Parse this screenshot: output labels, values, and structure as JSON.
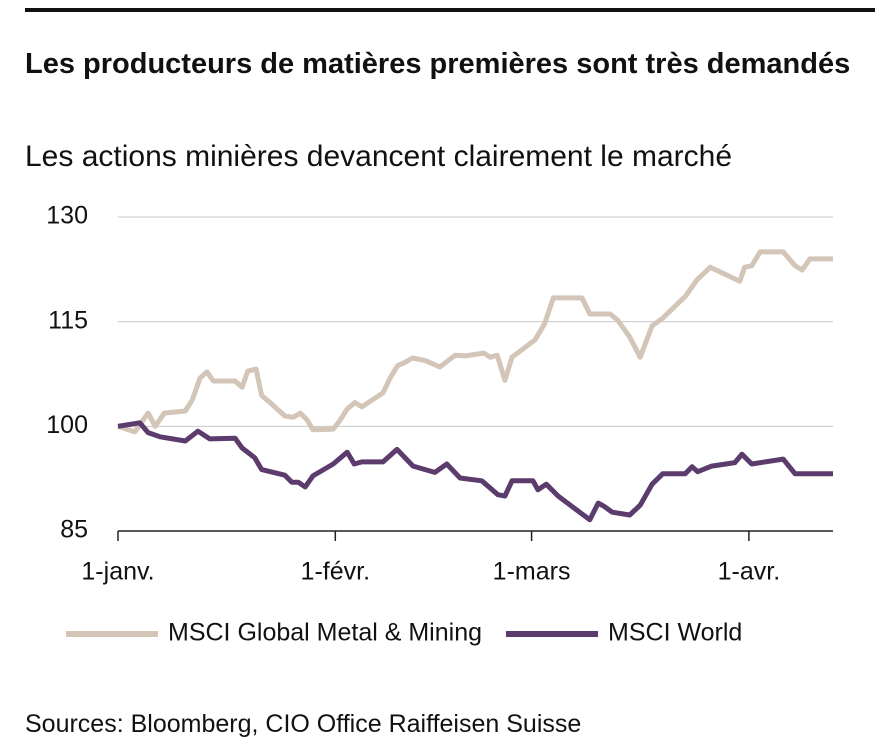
{
  "chart_data": {
    "type": "line",
    "title": "Les producteurs de matières premières sont très demandés",
    "subtitle": "Les actions minières devancent clairement le marché",
    "source": "Sources: Bloomberg, CIO Office Raiffeisen Suisse",
    "xlim": [
      0,
      102
    ],
    "xticks": [
      {
        "value": 0,
        "label": "1-janv."
      },
      {
        "value": 31,
        "label": "1-févr."
      },
      {
        "value": 59,
        "label": "1-mars"
      },
      {
        "value": 90,
        "label": "1-avr."
      }
    ],
    "ylim": [
      85,
      130
    ],
    "yticks": [
      85,
      100,
      115,
      130
    ],
    "grid": true,
    "legend": "bottom",
    "series": [
      {
        "name": "MSCI Global Metal & Mining",
        "color": "#d3c5b7",
        "x": [
          0,
          2.4,
          4.3,
          5.3,
          6.6,
          9.6,
          10.6,
          11.7,
          12.7,
          13.6,
          16.7,
          17.7,
          18.5,
          19.7,
          20.5,
          21.7,
          23.8,
          25.0,
          26.0,
          27.0,
          27.8,
          30.7,
          31.7,
          32.7,
          33.8,
          34.8,
          37.8,
          38.8,
          39.9,
          41.0,
          42.0,
          43.9,
          45.9,
          48.1,
          49.5,
          52.2,
          53.1,
          54.1,
          55.2,
          56.2,
          59.5,
          60.9,
          62.1,
          66.2,
          67.3,
          70.2,
          71.3,
          73.0,
          74.5,
          76.2,
          77.7,
          81.0,
          82.6,
          84.5,
          88.7,
          89.4,
          90.4,
          91.6,
          94.9,
          96.6,
          97.6,
          98.7,
          102
        ],
        "values": [
          100,
          99.2,
          101.9,
          100,
          101.9,
          102.2,
          103.8,
          106.9,
          107.8,
          106.5,
          106.5,
          105.6,
          107.9,
          108.2,
          104.4,
          103.4,
          101.5,
          101.3,
          101.9,
          100.9,
          99.5,
          99.6,
          100.9,
          102.5,
          103.4,
          102.8,
          104.8,
          106.9,
          108.7,
          109.2,
          109.8,
          109.4,
          108.5,
          110.2,
          110.1,
          110.5,
          109.9,
          110.2,
          106.6,
          109.9,
          112.4,
          114.8,
          118.4,
          118.4,
          116.1,
          116.1,
          115.2,
          112.8,
          109.9,
          114.4,
          115.5,
          118.7,
          121.0,
          122.8,
          120.8,
          122.8,
          123.0,
          125.0,
          125.0,
          123.0,
          122.4,
          124.0,
          124.0
        ]
      },
      {
        "name": "MSCI World",
        "color": "#5b3c6d",
        "x": [
          0,
          3.1,
          4.3,
          6.0,
          9.6,
          11.4,
          13.1,
          16.7,
          17.7,
          19.5,
          20.5,
          23.8,
          24.8,
          25.7,
          26.7,
          27.8,
          30.7,
          32.7,
          33.7,
          34.8,
          37.8,
          39.8,
          42.1,
          45.2,
          46.9,
          48.8,
          51.9,
          54.2,
          55.2,
          56.2,
          59.2,
          59.9,
          61.1,
          62.8,
          65.2,
          67.3,
          68.5,
          69.4,
          70.5,
          73.0,
          74.5,
          76.2,
          77.7,
          80.9,
          81.9,
          82.7,
          84.7,
          88.0,
          89.0,
          90.4,
          94.9,
          96.6,
          102
        ],
        "values": [
          100,
          100.5,
          99.1,
          98.5,
          97.9,
          99.3,
          98.2,
          98.3,
          96.9,
          95.5,
          93.8,
          93.0,
          92.0,
          92.0,
          91.3,
          92.9,
          94.6,
          96.3,
          94.6,
          94.9,
          94.9,
          96.7,
          94.3,
          93.4,
          94.6,
          92.6,
          92.2,
          90.2,
          90.0,
          92.2,
          92.2,
          90.9,
          91.7,
          90.0,
          88.2,
          86.6,
          89.0,
          88.5,
          87.7,
          87.3,
          88.7,
          91.7,
          93.2,
          93.2,
          94.2,
          93.5,
          94.3,
          94.8,
          96.0,
          94.6,
          95.3,
          93.2,
          93.2
        ]
      }
    ]
  }
}
